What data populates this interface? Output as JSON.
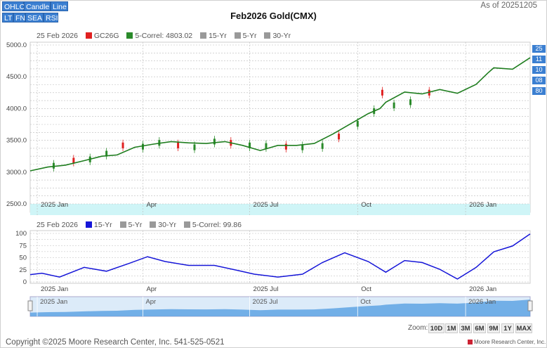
{
  "toolbar": [
    {
      "label": "OHLC"
    },
    {
      "label": "Candle"
    },
    {
      "label": "Line"
    },
    {
      "label": "LT"
    },
    {
      "label": "FN"
    },
    {
      "label": "SEA"
    },
    {
      "label": "RSI"
    }
  ],
  "header": {
    "title": "Feb2026 Gold(CMX)",
    "as_of": "As of 20251205"
  },
  "main_legend": {
    "date": "25 Feb 2026",
    "items": [
      {
        "label": "GC26G",
        "color": "#e02020"
      },
      {
        "label": "5-Correl: 4803.02",
        "color": "#2a8a2a"
      },
      {
        "label": "15-Yr",
        "color": "#999999"
      },
      {
        "label": "5-Yr",
        "color": "#999999"
      },
      {
        "label": "30-Yr",
        "color": "#999999"
      }
    ]
  },
  "lower_legend": {
    "date": "25 Feb 2026",
    "items": [
      {
        "label": "15-Yr",
        "color": "#1a1adc"
      },
      {
        "label": "5-Yr",
        "color": "#999999"
      },
      {
        "label": "30-Yr",
        "color": "#999999"
      },
      {
        "label": "5-Correl: 99.86",
        "color": "#999999"
      }
    ]
  },
  "right_buttons": [
    "25",
    "11",
    "10",
    "08",
    "80"
  ],
  "zoom": {
    "label": "Zoom:",
    "buttons": [
      "10D",
      "1M",
      "3M",
      "6M",
      "9M",
      "1Y",
      "MAX"
    ]
  },
  "footer": {
    "copyright": "Copyright ©2025 Moore Research Center, Inc. 541-525-0521",
    "brand": "Moore Research Center, Inc."
  },
  "colors": {
    "green": "#1e7d1e",
    "blue": "#1515d8",
    "up": "#2a8a2a",
    "down": "#e02020",
    "band": "#cff5f7",
    "nav": "#4f9be0"
  },
  "chart_data": [
    {
      "type": "line",
      "name": "price",
      "x_tick_labels": [
        "2025 Jan",
        "Apr",
        "2025 Jul",
        "Oct",
        "2026 Jan"
      ],
      "x_tick_dates": [
        "2025-01-01",
        "2025-04-01",
        "2025-07-01",
        "2025-10-01",
        "2026-01-01"
      ],
      "x_range": [
        "2024-12-26",
        "2026-02-25"
      ],
      "y_ticks": [
        2500.0,
        3000.0,
        3500.0,
        4000.0,
        4500.0,
        5000.0
      ],
      "y_tick_labels": [
        "2500.0",
        "3000.0",
        "3500.0",
        "4000.0",
        "4500.0",
        "5000.0"
      ],
      "ylim": [
        2500,
        5000
      ],
      "grid": true,
      "series": [
        {
          "name": "5-Correl",
          "x": [
            "2024-12-26",
            "2025-01-10",
            "2025-01-25",
            "2025-02-10",
            "2025-02-25",
            "2025-03-10",
            "2025-03-25",
            "2025-04-10",
            "2025-04-25",
            "2025-05-10",
            "2025-05-25",
            "2025-06-10",
            "2025-06-25",
            "2025-07-10",
            "2025-07-25",
            "2025-08-10",
            "2025-08-25",
            "2025-09-10",
            "2025-09-25",
            "2025-10-10",
            "2025-10-20",
            "2025-10-25",
            "2025-11-10",
            "2025-11-25",
            "2025-12-10",
            "2025-12-25",
            "2026-01-10",
            "2026-01-20",
            "2026-01-25",
            "2026-02-10",
            "2026-02-25"
          ],
          "y": [
            3020,
            3080,
            3110,
            3180,
            3250,
            3270,
            3390,
            3440,
            3480,
            3460,
            3450,
            3480,
            3420,
            3340,
            3420,
            3420,
            3450,
            3600,
            3760,
            3920,
            4000,
            4100,
            4260,
            4230,
            4300,
            4240,
            4380,
            4560,
            4640,
            4620,
            4800
          ]
        }
      ],
      "candles": {
        "x": [
          "2025-01-15",
          "2025-02-01",
          "2025-02-15",
          "2025-03-01",
          "2025-03-15",
          "2025-04-01",
          "2025-04-15",
          "2025-05-01",
          "2025-05-15",
          "2025-06-01",
          "2025-06-15",
          "2025-07-01",
          "2025-07-15",
          "2025-08-01",
          "2025-08-15",
          "2025-09-01",
          "2025-09-15",
          "2025-10-01",
          "2025-10-15",
          "2025-10-22",
          "2025-11-01",
          "2025-11-15",
          "2025-12-01"
        ],
        "y": [
          3100,
          3180,
          3200,
          3290,
          3420,
          3400,
          3460,
          3420,
          3390,
          3480,
          3460,
          3420,
          3410,
          3400,
          3390,
          3410,
          3560,
          3760,
          3960,
          4250,
          4050,
          4100,
          4250
        ]
      }
    },
    {
      "type": "line",
      "name": "lower",
      "y_ticks": [
        0,
        25,
        50,
        75,
        100
      ],
      "ylim": [
        0,
        100
      ],
      "x_tick_labels": [
        "2025 Jan",
        "Apr",
        "2025 Jul",
        "Oct",
        "2026 Jan"
      ],
      "x_tick_dates": [
        "2025-01-01",
        "2025-04-01",
        "2025-07-01",
        "2025-10-01",
        "2026-01-01"
      ],
      "x_range": [
        "2024-12-26",
        "2026-02-25"
      ],
      "grid": true,
      "series": [
        {
          "name": "15-Yr",
          "x": [
            "2024-12-26",
            "2025-01-05",
            "2025-01-20",
            "2025-02-10",
            "2025-03-01",
            "2025-03-20",
            "2025-04-05",
            "2025-04-20",
            "2025-05-10",
            "2025-06-01",
            "2025-06-20",
            "2025-07-05",
            "2025-07-25",
            "2025-08-15",
            "2025-09-01",
            "2025-09-20",
            "2025-10-10",
            "2025-10-25",
            "2025-11-10",
            "2025-11-25",
            "2025-12-10",
            "2025-12-25",
            "2026-01-10",
            "2026-01-25",
            "2026-02-10",
            "2026-02-25"
          ],
          "y": [
            15,
            18,
            10,
            30,
            22,
            38,
            52,
            42,
            34,
            34,
            24,
            16,
            10,
            16,
            40,
            60,
            42,
            20,
            44,
            40,
            26,
            6,
            30,
            62,
            74,
            99
          ]
        }
      ]
    }
  ]
}
